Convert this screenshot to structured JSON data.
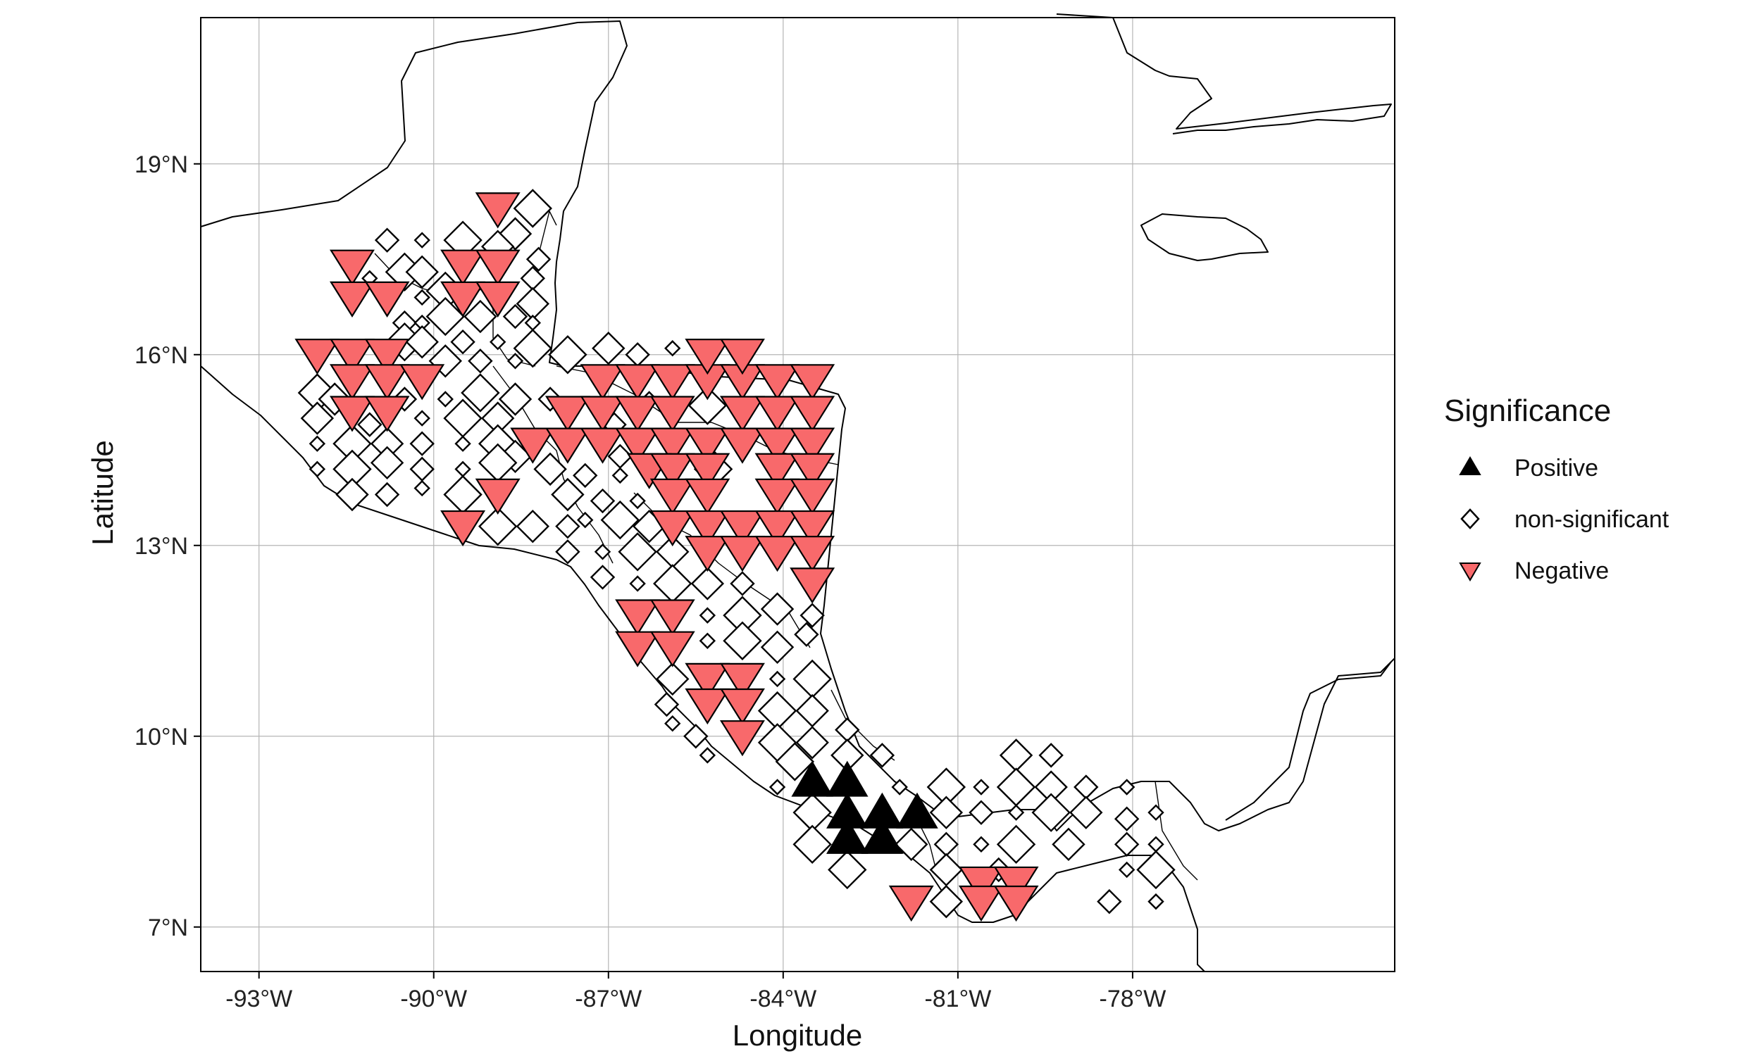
{
  "chart_data": {
    "type": "scatter",
    "xlabel": "Longitude",
    "ylabel": "Latitude",
    "xlim": [
      -94.0,
      -73.5
    ],
    "ylim": [
      6.3,
      21.3
    ],
    "x_ticks": [
      -93,
      -90,
      -87,
      -84,
      -81,
      -78
    ],
    "y_ticks": [
      7,
      10,
      13,
      16,
      19
    ],
    "x_tick_labels": [
      "-93°W",
      "-90°W",
      "-87°W",
      "-84°W",
      "-81°W",
      "-78°W"
    ],
    "y_tick_labels": [
      "7°N",
      "10°N",
      "13°N",
      "16°N",
      "19°N"
    ],
    "grid": true,
    "legend": {
      "title": "Significance",
      "placement": "right",
      "entries": [
        {
          "label": "Positive",
          "shape": "triangle-up",
          "color": "#000000"
        },
        {
          "label": "non-significant",
          "shape": "diamond-open",
          "color": "#ffffff"
        },
        {
          "label": "Negative",
          "shape": "triangle-down",
          "color": "#f8696b"
        }
      ]
    },
    "colors": {
      "positive": "#000000",
      "negative": "#f8696b",
      "nonsig": "#ffffff",
      "stroke": "#000000"
    },
    "negative_points": [
      [
        -88.9,
        18.3
      ],
      [
        -91.4,
        17.4
      ],
      [
        -89.5,
        17.4
      ],
      [
        -88.9,
        17.4
      ],
      [
        -91.4,
        16.9
      ],
      [
        -90.8,
        16.9
      ],
      [
        -89.5,
        16.9
      ],
      [
        -88.9,
        16.9
      ],
      [
        -92.0,
        16.0
      ],
      [
        -91.4,
        16.0
      ],
      [
        -90.8,
        16.0
      ],
      [
        -91.4,
        15.6
      ],
      [
        -90.8,
        15.6
      ],
      [
        -90.2,
        15.6
      ],
      [
        -91.4,
        15.1
      ],
      [
        -90.8,
        15.1
      ],
      [
        -88.9,
        13.8
      ],
      [
        -89.5,
        13.3
      ],
      [
        -87.1,
        15.6
      ],
      [
        -86.5,
        15.6
      ],
      [
        -85.9,
        15.6
      ],
      [
        -85.3,
        15.6
      ],
      [
        -84.7,
        15.6
      ],
      [
        -84.1,
        15.6
      ],
      [
        -83.5,
        15.6
      ],
      [
        -85.3,
        16.0
      ],
      [
        -84.7,
        16.0
      ],
      [
        -87.7,
        15.1
      ],
      [
        -87.1,
        15.1
      ],
      [
        -86.5,
        15.1
      ],
      [
        -85.9,
        15.1
      ],
      [
        -84.7,
        15.1
      ],
      [
        -84.1,
        15.1
      ],
      [
        -83.5,
        15.1
      ],
      [
        -88.3,
        14.6
      ],
      [
        -87.7,
        14.6
      ],
      [
        -87.1,
        14.6
      ],
      [
        -86.5,
        14.6
      ],
      [
        -85.9,
        14.6
      ],
      [
        -85.3,
        14.6
      ],
      [
        -84.7,
        14.6
      ],
      [
        -84.1,
        14.6
      ],
      [
        -83.5,
        14.6
      ],
      [
        -86.3,
        14.2
      ],
      [
        -85.9,
        14.2
      ],
      [
        -85.3,
        14.2
      ],
      [
        -84.1,
        14.2
      ],
      [
        -83.5,
        14.2
      ],
      [
        -85.9,
        13.8
      ],
      [
        -85.3,
        13.8
      ],
      [
        -84.1,
        13.8
      ],
      [
        -83.5,
        13.8
      ],
      [
        -85.9,
        13.3
      ],
      [
        -85.3,
        13.3
      ],
      [
        -84.7,
        13.3
      ],
      [
        -84.1,
        13.3
      ],
      [
        -83.5,
        13.3
      ],
      [
        -85.3,
        12.9
      ],
      [
        -84.7,
        12.9
      ],
      [
        -84.1,
        12.9
      ],
      [
        -83.5,
        12.9
      ],
      [
        -83.5,
        12.4
      ],
      [
        -86.5,
        11.9
      ],
      [
        -85.9,
        11.9
      ],
      [
        -86.5,
        11.4
      ],
      [
        -85.9,
        11.4
      ],
      [
        -85.3,
        10.9
      ],
      [
        -84.7,
        10.9
      ],
      [
        -85.3,
        10.5
      ],
      [
        -84.7,
        10.5
      ],
      [
        -84.7,
        10.0
      ],
      [
        -80.6,
        7.7
      ],
      [
        -80.0,
        7.7
      ],
      [
        -81.8,
        7.4
      ],
      [
        -80.6,
        7.4
      ],
      [
        -80.0,
        7.4
      ]
    ],
    "positive_points": [
      [
        -83.5,
        9.3
      ],
      [
        -82.9,
        9.3
      ],
      [
        -82.9,
        8.8
      ],
      [
        -82.3,
        8.8
      ],
      [
        -81.7,
        8.8
      ],
      [
        -82.9,
        8.4
      ],
      [
        -82.3,
        8.4
      ]
    ],
    "nonsig_points": [
      [
        -88.3,
        18.3
      ],
      [
        -88.6,
        17.9
      ],
      [
        -90.8,
        17.8
      ],
      [
        -90.2,
        17.8
      ],
      [
        -89.5,
        17.8
      ],
      [
        -88.9,
        17.7
      ],
      [
        -88.2,
        17.5
      ],
      [
        -91.1,
        17.2
      ],
      [
        -90.5,
        17.3
      ],
      [
        -90.2,
        17.3
      ],
      [
        -88.3,
        17.2
      ],
      [
        -90.2,
        16.9
      ],
      [
        -89.8,
        17.0
      ],
      [
        -88.3,
        16.8
      ],
      [
        -90.5,
        16.5
      ],
      [
        -90.2,
        16.5
      ],
      [
        -89.8,
        16.6
      ],
      [
        -89.2,
        16.6
      ],
      [
        -88.6,
        16.6
      ],
      [
        -88.3,
        16.5
      ],
      [
        -90.5,
        16.2
      ],
      [
        -90.2,
        16.2
      ],
      [
        -89.5,
        16.2
      ],
      [
        -88.9,
        16.2
      ],
      [
        -88.3,
        16.1
      ],
      [
        -89.8,
        15.9
      ],
      [
        -89.2,
        15.9
      ],
      [
        -88.6,
        15.9
      ],
      [
        -87.7,
        16.0
      ],
      [
        -87.0,
        16.1
      ],
      [
        -86.5,
        16.0
      ],
      [
        -85.9,
        16.1
      ],
      [
        -92.0,
        15.4
      ],
      [
        -91.7,
        15.3
      ],
      [
        -90.5,
        15.3
      ],
      [
        -89.8,
        15.3
      ],
      [
        -89.2,
        15.4
      ],
      [
        -88.6,
        15.3
      ],
      [
        -88.0,
        15.3
      ],
      [
        -86.3,
        15.3
      ],
      [
        -85.3,
        15.2
      ],
      [
        -92.0,
        15.0
      ],
      [
        -91.1,
        14.9
      ],
      [
        -90.2,
        15.0
      ],
      [
        -89.5,
        15.0
      ],
      [
        -88.9,
        15.0
      ],
      [
        -86.9,
        14.9
      ],
      [
        -92.0,
        14.6
      ],
      [
        -91.4,
        14.6
      ],
      [
        -90.8,
        14.6
      ],
      [
        -90.2,
        14.6
      ],
      [
        -89.5,
        14.6
      ],
      [
        -88.9,
        14.6
      ],
      [
        -88.6,
        14.4
      ],
      [
        -86.8,
        14.4
      ],
      [
        -92.0,
        14.2
      ],
      [
        -91.4,
        14.2
      ],
      [
        -90.8,
        14.3
      ],
      [
        -90.2,
        14.2
      ],
      [
        -89.5,
        14.2
      ],
      [
        -88.9,
        14.3
      ],
      [
        -88.0,
        14.2
      ],
      [
        -87.4,
        14.1
      ],
      [
        -86.8,
        14.1
      ],
      [
        -85.2,
        14.2
      ],
      [
        -91.4,
        13.8
      ],
      [
        -90.8,
        13.8
      ],
      [
        -90.2,
        13.9
      ],
      [
        -89.5,
        13.8
      ],
      [
        -87.7,
        13.8
      ],
      [
        -87.1,
        13.7
      ],
      [
        -86.5,
        13.7
      ],
      [
        -88.9,
        13.3
      ],
      [
        -88.3,
        13.3
      ],
      [
        -87.7,
        13.3
      ],
      [
        -87.4,
        13.4
      ],
      [
        -86.8,
        13.4
      ],
      [
        -86.3,
        13.3
      ],
      [
        -87.7,
        12.9
      ],
      [
        -87.1,
        12.9
      ],
      [
        -86.5,
        12.9
      ],
      [
        -85.9,
        12.9
      ],
      [
        -87.1,
        12.5
      ],
      [
        -86.5,
        12.4
      ],
      [
        -85.9,
        12.4
      ],
      [
        -85.3,
        12.4
      ],
      [
        -84.7,
        12.4
      ],
      [
        -85.3,
        11.9
      ],
      [
        -84.7,
        11.9
      ],
      [
        -84.1,
        12.0
      ],
      [
        -83.5,
        11.9
      ],
      [
        -85.3,
        11.5
      ],
      [
        -84.7,
        11.5
      ],
      [
        -84.1,
        11.4
      ],
      [
        -83.6,
        11.6
      ],
      [
        -84.1,
        10.9
      ],
      [
        -83.5,
        10.9
      ],
      [
        -85.9,
        10.9
      ],
      [
        -86.0,
        10.5
      ],
      [
        -85.9,
        10.2
      ],
      [
        -84.1,
        10.4
      ],
      [
        -83.5,
        10.4
      ],
      [
        -85.5,
        10.0
      ],
      [
        -85.3,
        9.7
      ],
      [
        -84.1,
        9.9
      ],
      [
        -83.5,
        9.9
      ],
      [
        -82.9,
        10.1
      ],
      [
        -84.1,
        9.2
      ],
      [
        -83.8,
        9.6
      ],
      [
        -82.9,
        9.7
      ],
      [
        -82.3,
        9.7
      ],
      [
        -82.0,
        9.2
      ],
      [
        -81.2,
        9.2
      ],
      [
        -80.0,
        9.7
      ],
      [
        -79.4,
        9.7
      ],
      [
        -80.6,
        9.2
      ],
      [
        -80.0,
        9.2
      ],
      [
        -79.4,
        9.2
      ],
      [
        -78.8,
        9.2
      ],
      [
        -78.1,
        9.2
      ],
      [
        -83.5,
        8.8
      ],
      [
        -81.2,
        8.8
      ],
      [
        -80.6,
        8.8
      ],
      [
        -80.0,
        8.8
      ],
      [
        -79.4,
        8.8
      ],
      [
        -78.8,
        8.8
      ],
      [
        -78.1,
        8.7
      ],
      [
        -77.6,
        8.8
      ],
      [
        -83.5,
        8.3
      ],
      [
        -81.8,
        8.3
      ],
      [
        -81.2,
        8.3
      ],
      [
        -80.6,
        8.3
      ],
      [
        -80.0,
        8.3
      ],
      [
        -79.1,
        8.3
      ],
      [
        -78.1,
        8.3
      ],
      [
        -77.6,
        8.3
      ],
      [
        -82.9,
        7.9
      ],
      [
        -81.2,
        7.9
      ],
      [
        -80.3,
        7.9
      ],
      [
        -78.1,
        7.9
      ],
      [
        -77.6,
        7.9
      ],
      [
        -81.2,
        7.4
      ],
      [
        -78.4,
        7.4
      ],
      [
        -77.6,
        7.4
      ]
    ]
  }
}
